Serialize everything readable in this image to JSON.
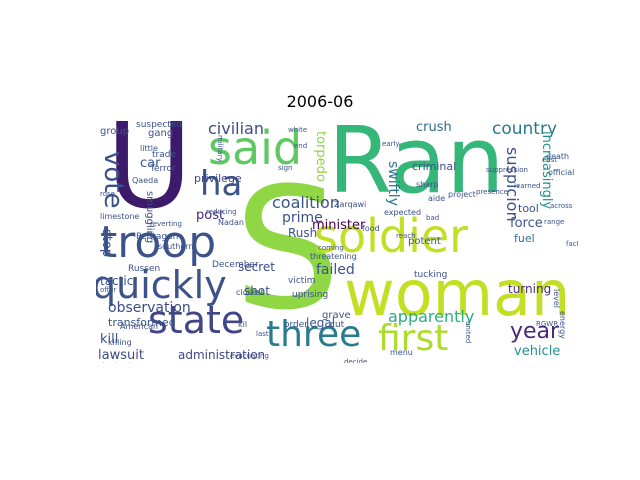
{
  "title": "2006-06",
  "palette": [
    "#440154",
    "#482777",
    "#3e4a89",
    "#31688e",
    "#26838f",
    "#1f9d8a",
    "#35b779",
    "#6cce5a",
    "#b6de2b",
    "#d8e219"
  ],
  "words": [
    {
      "text": "Ran",
      "color": "#35b779"
    },
    {
      "text": "S",
      "color": "#8fd744"
    },
    {
      "text": "U",
      "color": "#3e1a6b"
    },
    {
      "text": "woman",
      "color": "#c2df23"
    },
    {
      "text": "soldier",
      "color": "#c2df23"
    },
    {
      "text": "troop",
      "color": "#3b528b"
    },
    {
      "text": "said",
      "color": "#5ec962"
    },
    {
      "text": "quickly",
      "color": "#3b528b"
    },
    {
      "text": "state",
      "color": "#404688"
    },
    {
      "text": "three",
      "color": "#287c8e"
    },
    {
      "text": "first",
      "color": "#addc30"
    },
    {
      "text": "ha",
      "color": "#3b528b"
    },
    {
      "text": "vote",
      "color": "#3b528b"
    },
    {
      "text": "year",
      "color": "#482878"
    },
    {
      "text": "country",
      "color": "#2a788e"
    },
    {
      "text": "civilian",
      "color": "#3e4a89"
    },
    {
      "text": "coalition",
      "color": "#3a548c"
    },
    {
      "text": "crush",
      "color": "#31688e"
    },
    {
      "text": "suspicion",
      "color": "#3b528b"
    },
    {
      "text": "increasingly",
      "color": "#21918c"
    },
    {
      "text": "swiftly",
      "color": "#2c728e"
    },
    {
      "text": "apparently",
      "color": "#29af7f"
    },
    {
      "text": "observation",
      "color": "#3e4a89"
    },
    {
      "text": "failed",
      "color": "#3b528b"
    },
    {
      "text": "turning",
      "color": "#472c7a"
    },
    {
      "text": "force",
      "color": "#3b528b"
    },
    {
      "text": "prime",
      "color": "#3b528b"
    },
    {
      "text": "minister",
      "color": "#440154"
    },
    {
      "text": "secret",
      "color": "#3e4a89"
    },
    {
      "text": "Rush",
      "color": "#3b528b"
    },
    {
      "text": "post",
      "color": "#482878"
    },
    {
      "text": "car",
      "color": "#3b528b"
    },
    {
      "text": "stop",
      "color": "#3b528b"
    },
    {
      "text": "tactic",
      "color": "#3b528b"
    },
    {
      "text": "kill",
      "color": "#3b528b"
    },
    {
      "text": "lawsuit",
      "color": "#3e4a89"
    },
    {
      "text": "administration",
      "color": "#404688"
    },
    {
      "text": "vehicle",
      "color": "#21918c"
    },
    {
      "text": "legal",
      "color": "#3b528b"
    },
    {
      "text": "shot",
      "color": "#3b528b"
    },
    {
      "text": "torpedo",
      "color": "#8fd744"
    },
    {
      "text": "fuel",
      "color": "#2c728e"
    },
    {
      "text": "tool",
      "color": "#3b528b"
    },
    {
      "text": "criminal",
      "color": "#3b528b"
    },
    {
      "text": "transformed",
      "color": "#3b528b"
    },
    {
      "text": "smuggling",
      "color": "#3b528b"
    },
    {
      "text": "privilege",
      "color": "#3e4a89"
    },
    {
      "text": "grave",
      "color": "#3b528b"
    },
    {
      "text": "potent",
      "color": "#3b528b"
    },
    {
      "text": "group",
      "color": "#3b528b"
    },
    {
      "text": "gang",
      "color": "#3b528b"
    },
    {
      "text": "Terror",
      "color": "#3b528b"
    },
    {
      "text": "trade",
      "color": "#3b528b"
    },
    {
      "text": "suspected",
      "color": "#3b528b"
    },
    {
      "text": "victim",
      "color": "#3b528b"
    },
    {
      "text": "uprising",
      "color": "#3b528b"
    },
    {
      "text": "cut",
      "color": "#3b528b"
    },
    {
      "text": "menu",
      "color": "#3b528b"
    },
    {
      "text": "threatening",
      "color": "#3b528b"
    },
    {
      "text": "Pentagon",
      "color": "#3b528b"
    },
    {
      "text": "December",
      "color": "#3b528b"
    },
    {
      "text": "Russen",
      "color": "#3b528b"
    },
    {
      "text": "order",
      "color": "#3b528b"
    },
    {
      "text": "closest",
      "color": "#3b528b"
    },
    {
      "text": "kil",
      "color": "#3b528b"
    },
    {
      "text": "tucking",
      "color": "#3b528b"
    },
    {
      "text": "limestone",
      "color": "#3b528b"
    },
    {
      "text": "Qaeda",
      "color": "#3b528b"
    },
    {
      "text": "Nadan",
      "color": "#3b528b"
    },
    {
      "text": "little",
      "color": "#3b528b"
    },
    {
      "text": "southern",
      "color": "#3b528b"
    },
    {
      "text": "Zarqawi",
      "color": "#3b528b"
    },
    {
      "text": "food",
      "color": "#3b528b"
    },
    {
      "text": "sharp",
      "color": "#3b528b"
    },
    {
      "text": "aide",
      "color": "#3b528b"
    },
    {
      "text": "project",
      "color": "#3b528b"
    },
    {
      "text": "level",
      "color": "#3b528b"
    },
    {
      "text": "energy",
      "color": "#3b528b"
    },
    {
      "text": "death",
      "color": "#3b528b"
    },
    {
      "text": "across",
      "color": "#3b528b"
    },
    {
      "text": "killing",
      "color": "#3b528b"
    },
    {
      "text": "American",
      "color": "#3b528b"
    },
    {
      "text": "expected",
      "color": "#3b528b"
    },
    {
      "text": "official",
      "color": "#3b528b"
    },
    {
      "text": "learned",
      "color": "#3b528b"
    },
    {
      "text": "military",
      "color": "#3b528b"
    },
    {
      "text": "offer",
      "color": "#3b528b"
    },
    {
      "text": "rose",
      "color": "#3b528b"
    },
    {
      "text": "early",
      "color": "#3b528b"
    },
    {
      "text": "presence",
      "color": "#3b528b"
    },
    {
      "text": "suppression",
      "color": "#3b528b"
    },
    {
      "text": "east",
      "color": "#3b528b"
    },
    {
      "text": "range",
      "color": "#3b528b"
    },
    {
      "text": "coming",
      "color": "#3b528b"
    },
    {
      "text": "reach",
      "color": "#3b528b"
    },
    {
      "text": "bad",
      "color": "#3b528b"
    },
    {
      "text": "detained",
      "color": "#3b528b"
    },
    {
      "text": "shooting",
      "color": "#3b528b"
    },
    {
      "text": "evacuating",
      "color": "#3b528b"
    },
    {
      "text": "united",
      "color": "#3b528b"
    },
    {
      "text": "bouncing",
      "color": "#3b528b"
    },
    {
      "text": "decide",
      "color": "#3b528b"
    },
    {
      "text": "reducing",
      "color": "#3b528b"
    },
    {
      "text": "white",
      "color": "#3b528b"
    },
    {
      "text": "end",
      "color": "#3b528b"
    },
    {
      "text": "RGWR",
      "color": "#3b528b"
    },
    {
      "text": "reverting",
      "color": "#3b528b"
    },
    {
      "text": "factory",
      "color": "#3b528b"
    },
    {
      "text": "last",
      "color": "#3b528b"
    },
    {
      "text": "sign",
      "color": "#3b528b"
    }
  ]
}
